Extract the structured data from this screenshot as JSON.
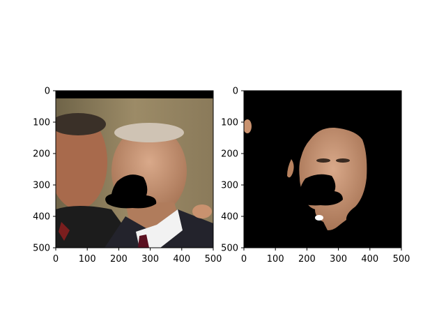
{
  "figure": {
    "background": "#ffffff",
    "panels": [
      {
        "id": "original",
        "description_icon": "photo-two-men-face-masked",
        "x_ticks": [
          "0",
          "100",
          "200",
          "300",
          "400",
          "500"
        ],
        "y_ticks": [
          "0",
          "100",
          "200",
          "300",
          "400",
          "500"
        ],
        "x_range": [
          0,
          500
        ],
        "y_range": [
          0,
          500
        ]
      },
      {
        "id": "segmented",
        "description_icon": "segmented-face-on-black",
        "x_ticks": [
          "0",
          "100",
          "200",
          "300",
          "400",
          "500"
        ],
        "y_ticks": [
          "0",
          "100",
          "200",
          "300",
          "400",
          "500"
        ],
        "x_range": [
          0,
          500
        ],
        "y_range": [
          0,
          500
        ]
      }
    ]
  },
  "colors": {
    "axis": "#000000",
    "photo_background": "#9a8866",
    "mask": "#000000",
    "skin": "#c9926f"
  }
}
